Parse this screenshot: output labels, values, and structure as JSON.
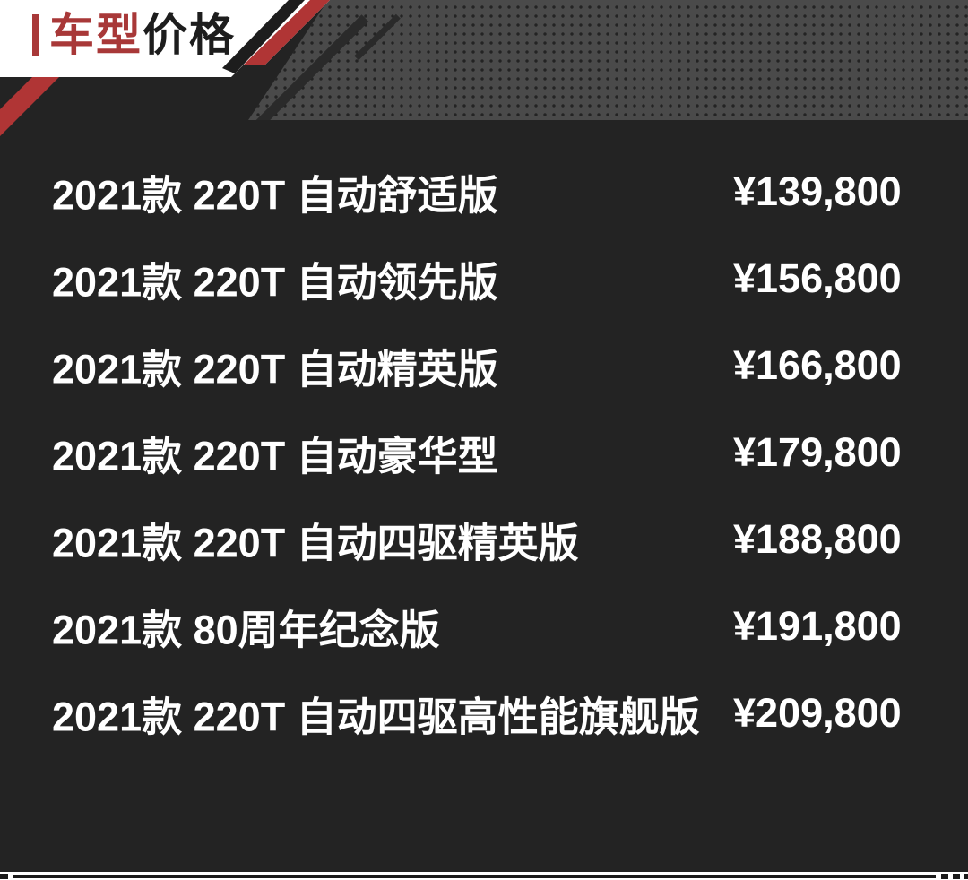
{
  "theme": {
    "bg": "#232323",
    "banner_bg": "#ffffff",
    "accent_red": "#b03535",
    "title_red": "#a83838",
    "title_black": "#1d1d1d",
    "text_white": "#ffffff",
    "dotted_bg": "#4a4a4a",
    "dot_color": "#232323"
  },
  "header": {
    "title_part1": "车型",
    "title_part2": "价格"
  },
  "price_list": {
    "rows": [
      {
        "name": "2021款 220T 自动舒适版",
        "price": "¥139,800"
      },
      {
        "name": "2021款 220T 自动领先版",
        "price": "¥156,800"
      },
      {
        "name": "2021款 220T 自动精英版",
        "price": "¥166,800"
      },
      {
        "name": "2021款 220T 自动豪华型",
        "price": "¥179,800"
      },
      {
        "name": "2021款 220T 自动四驱精英版",
        "price": "¥188,800"
      },
      {
        "name": "2021款 80周年纪念版",
        "price": "¥191,800"
      },
      {
        "name": "2021款 220T 自动四驱高性能旗舰版",
        "price": "¥209,800"
      }
    ]
  },
  "chart_data": {
    "type": "table",
    "title": "车型价格",
    "columns": [
      "车型",
      "价格"
    ],
    "rows": [
      [
        "2021款 220T 自动舒适版",
        "¥139,800"
      ],
      [
        "2021款 220T 自动领先版",
        "¥156,800"
      ],
      [
        "2021款 220T 自动精英版",
        "¥166,800"
      ],
      [
        "2021款 220T 自动豪华型",
        "¥179,800"
      ],
      [
        "2021款 220T 自动四驱精英版",
        "¥188,800"
      ],
      [
        "2021款 80周年纪念版",
        "¥191,800"
      ],
      [
        "2021款 220T 自动四驱高性能旗舰版",
        "¥209,800"
      ]
    ],
    "prices_cny": [
      139800,
      156800,
      166800,
      179800,
      188800,
      191800,
      209800
    ],
    "currency": "CNY",
    "legend_position": "none",
    "grid": false
  }
}
